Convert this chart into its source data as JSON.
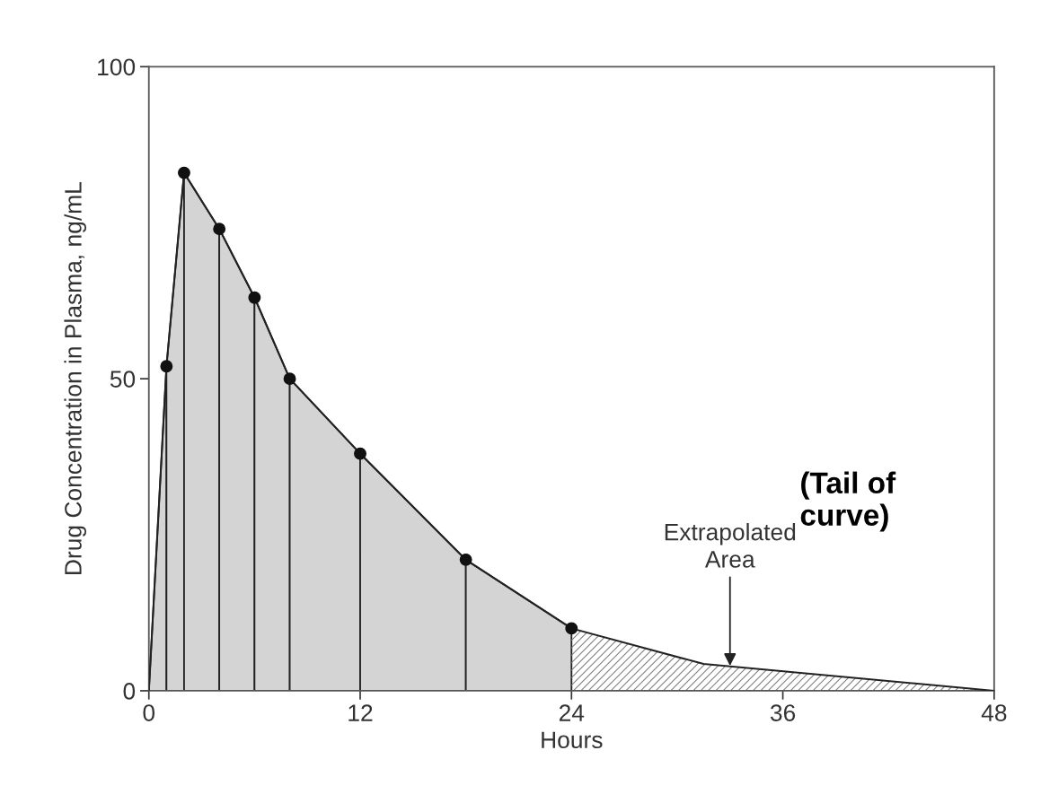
{
  "chart_data": {
    "type": "area",
    "xlabel": "Hours",
    "ylabel": "Drug Concentration in Plasma, ng/mL",
    "series": [
      {
        "color": "#d4d4d4",
        "marker": "circle",
        "x": [
          0,
          1,
          2,
          4,
          6,
          8,
          12,
          18,
          24
        ],
        "values": [
          0,
          52,
          83,
          74,
          63,
          50,
          38,
          21,
          10
        ]
      },
      {
        "color": "#808080",
        "marker": "none",
        "x": [
          24,
          31.5,
          48
        ],
        "values": [
          10,
          4.3,
          0
        ]
      }
    ],
    "xlim": [
      0,
      48
    ],
    "xticks": [
      0,
      12,
      24,
      36,
      48
    ],
    "ylim": [
      0,
      100
    ],
    "yticks": [
      0,
      50,
      100
    ],
    "grid": false,
    "legend": false,
    "annotations": [
      {
        "text": "Extrapolated\nArea",
        "x": 33,
        "y": 4
      },
      "(Tail of\ncurve)"
    ]
  }
}
